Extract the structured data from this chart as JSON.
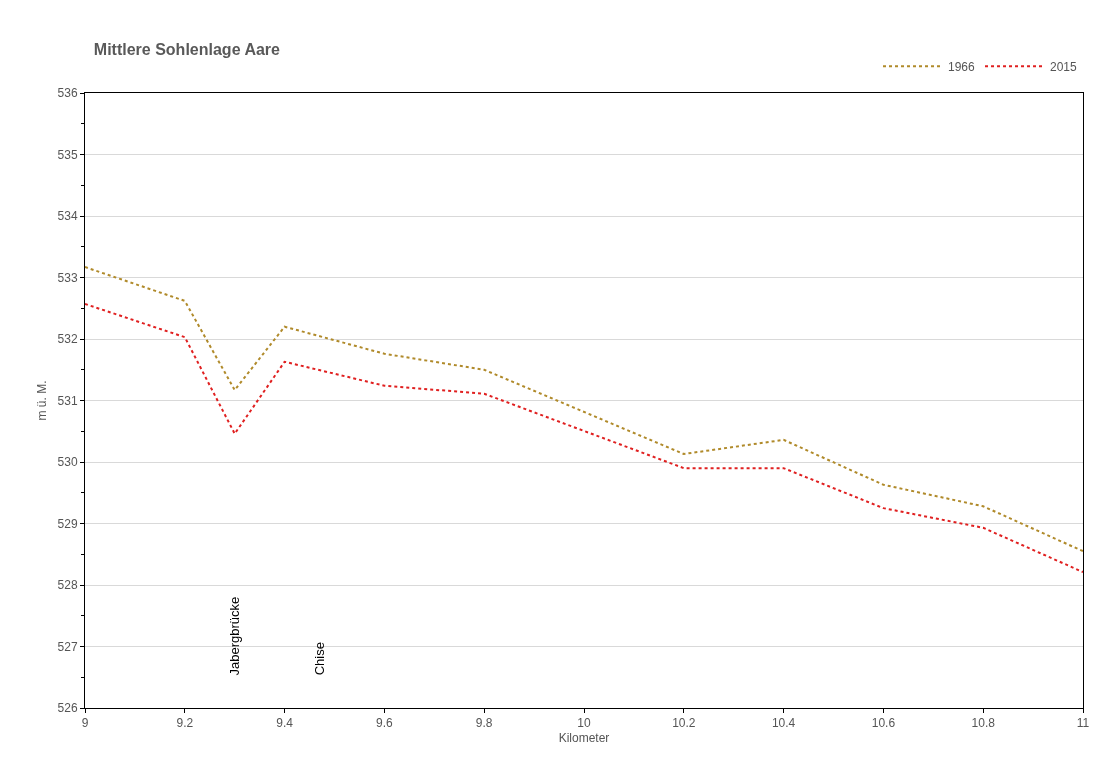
{
  "chart_data": {
    "type": "line",
    "title": "Mittlere Sohlenlage Aare",
    "xlabel": "Kilometer",
    "ylabel": "m ü. M.",
    "x": [
      9,
      9.2,
      9.3,
      9.4,
      9.6,
      9.8,
      10.2,
      10.4,
      10.6,
      10.8,
      11
    ],
    "series": [
      {
        "name": "1966",
        "color": "#b08a2a",
        "values": [
          533.17,
          532.62,
          531.17,
          532.2,
          531.76,
          531.5,
          530.13,
          530.36,
          529.63,
          529.28,
          528.55
        ]
      },
      {
        "name": "2015",
        "color": "#e02020",
        "values": [
          532.57,
          532.03,
          530.46,
          531.63,
          531.24,
          531.11,
          529.9,
          529.9,
          529.25,
          528.93,
          528.21
        ]
      }
    ],
    "xlim": [
      9,
      11
    ],
    "xticks": [
      9,
      9.2,
      9.4,
      9.6,
      9.8,
      10,
      10.2,
      10.4,
      10.6,
      10.8,
      11
    ],
    "ylim": [
      526,
      536
    ],
    "yticks": [
      526,
      527,
      528,
      529,
      530,
      531,
      532,
      533,
      534,
      535,
      536
    ],
    "annotations": [
      "Jabergbrücke",
      "Chise"
    ],
    "grid": "y",
    "legend": "top right",
    "line_style": "dotted",
    "marker": "none"
  }
}
